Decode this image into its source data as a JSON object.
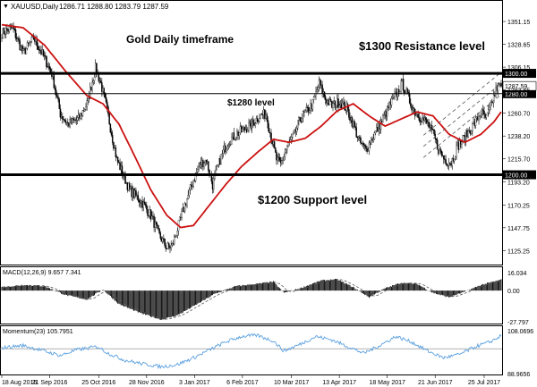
{
  "header": {
    "symbol": "XAUUSD,Daily",
    "ohlc": "1286.71 1288.80 1283.79 1287.59"
  },
  "annotations": {
    "title": "Gold Daily timeframe",
    "resistance": "$1300 Resistance level",
    "mid": "$1280 level",
    "support": "$1200 Support level"
  },
  "macd_label": "MACD(12,26,9) 9.657 7.341",
  "momentum_label": "Momentum(23) 105.7951",
  "colors": {
    "ma_line": "#cc1111",
    "candle": "#000000",
    "level": "#000000",
    "momentum_line": "#5aa0e0",
    "momentum_ref": "#999999",
    "grid_bg": "#ffffff"
  },
  "chart_data": [
    {
      "type": "candlestick",
      "panel": "price",
      "ylim": [
        1115,
        1360
      ],
      "y_ticks": [
        "1351.15",
        "1328.65",
        "1306.15",
        "1283.65",
        "1260.70",
        "1238.20",
        "1215.70",
        "1193.20",
        "1170.25",
        "1147.75",
        "1125.25"
      ],
      "x_ticks": [
        "18 Aug 2016",
        "21 Sep 2016",
        "25 Oct 2016",
        "28 Nov 2016",
        "3 Jan 2017",
        "6 Feb 2017",
        "10 Mar 2017",
        "13 Apr 2017",
        "18 May 2017",
        "21 Jun 2017",
        "25 Jul 2017"
      ],
      "last_price": "1287.59",
      "levels": [
        {
          "value": 1300.0,
          "label": "1300.00",
          "style": "thick"
        },
        {
          "value": 1280.0,
          "label": "1280.00",
          "style": "thin"
        },
        {
          "value": 1200.0,
          "label": "1200.00",
          "style": "thick"
        }
      ],
      "close_keypoints": [
        [
          0,
          1340
        ],
        [
          10,
          1345
        ],
        [
          20,
          1320
        ],
        [
          30,
          1335
        ],
        [
          40,
          1315
        ],
        [
          47,
          1300
        ],
        [
          55,
          1260
        ],
        [
          62,
          1250
        ],
        [
          72,
          1255
        ],
        [
          80,
          1270
        ],
        [
          88,
          1305
        ],
        [
          93,
          1290
        ],
        [
          98,
          1268
        ],
        [
          108,
          1215
        ],
        [
          120,
          1185
        ],
        [
          130,
          1175
        ],
        [
          140,
          1160
        ],
        [
          148,
          1140
        ],
        [
          155,
          1128
        ],
        [
          160,
          1130
        ],
        [
          166,
          1150
        ],
        [
          172,
          1170
        ],
        [
          180,
          1195
        ],
        [
          186,
          1210
        ],
        [
          192,
          1215
        ],
        [
          198,
          1190
        ],
        [
          205,
          1215
        ],
        [
          212,
          1232
        ],
        [
          220,
          1240
        ],
        [
          228,
          1245
        ],
        [
          235,
          1250
        ],
        [
          242,
          1258
        ],
        [
          248,
          1260
        ],
        [
          252,
          1242
        ],
        [
          258,
          1215
        ],
        [
          262,
          1210
        ],
        [
          268,
          1228
        ],
        [
          275,
          1240
        ],
        [
          280,
          1255
        ],
        [
          286,
          1262
        ],
        [
          292,
          1270
        ],
        [
          298,
          1290
        ],
        [
          304,
          1275
        ],
        [
          310,
          1268
        ],
        [
          317,
          1272
        ],
        [
          324,
          1265
        ],
        [
          330,
          1250
        ],
        [
          336,
          1232
        ],
        [
          342,
          1225
        ],
        [
          350,
          1240
        ],
        [
          358,
          1255
        ],
        [
          364,
          1268
        ],
        [
          370,
          1278
        ],
        [
          376,
          1290
        ],
        [
          382,
          1275
        ],
        [
          388,
          1262
        ],
        [
          394,
          1256
        ],
        [
          400,
          1250
        ],
        [
          406,
          1238
        ],
        [
          410,
          1225
        ],
        [
          416,
          1215
        ],
        [
          422,
          1212
        ],
        [
          428,
          1228
        ],
        [
          434,
          1236
        ],
        [
          440,
          1245
        ],
        [
          446,
          1254
        ],
        [
          450,
          1262
        ],
        [
          455,
          1255
        ],
        [
          460,
          1270
        ],
        [
          465,
          1286
        ],
        [
          469,
          1287.6
        ]
      ],
      "ma_keypoints": [
        [
          0,
          1348
        ],
        [
          20,
          1345
        ],
        [
          40,
          1328
        ],
        [
          60,
          1302
        ],
        [
          80,
          1278
        ],
        [
          95,
          1270
        ],
        [
          110,
          1250
        ],
        [
          125,
          1218
        ],
        [
          140,
          1185
        ],
        [
          155,
          1160
        ],
        [
          168,
          1148
        ],
        [
          180,
          1150
        ],
        [
          195,
          1170
        ],
        [
          210,
          1190
        ],
        [
          225,
          1208
        ],
        [
          240,
          1222
        ],
        [
          255,
          1235
        ],
        [
          270,
          1232
        ],
        [
          285,
          1236
        ],
        [
          300,
          1248
        ],
        [
          315,
          1263
        ],
        [
          330,
          1270
        ],
        [
          345,
          1258
        ],
        [
          360,
          1248
        ],
        [
          375,
          1255
        ],
        [
          390,
          1262
        ],
        [
          405,
          1258
        ],
        [
          420,
          1240
        ],
        [
          435,
          1232
        ],
        [
          450,
          1240
        ],
        [
          462,
          1252
        ],
        [
          469,
          1262
        ]
      ],
      "channel": {
        "start_index": 396,
        "start_price": 1228,
        "end_index": 469,
        "end_price": 1290,
        "width": 22
      }
    },
    {
      "type": "histogram",
      "panel": "macd",
      "ylim": [
        -27.797,
        16.034
      ],
      "y_ticks": [
        "16.034",
        "0.00",
        "-27.797"
      ],
      "keypoints": [
        [
          0,
          3
        ],
        [
          20,
          5
        ],
        [
          40,
          4
        ],
        [
          60,
          -4
        ],
        [
          80,
          -8
        ],
        [
          95,
          1
        ],
        [
          110,
          -12
        ],
        [
          130,
          -20
        ],
        [
          150,
          -26
        ],
        [
          165,
          -22
        ],
        [
          180,
          -14
        ],
        [
          200,
          -3
        ],
        [
          220,
          4
        ],
        [
          240,
          6
        ],
        [
          255,
          8
        ],
        [
          265,
          -2
        ],
        [
          280,
          2
        ],
        [
          300,
          9
        ],
        [
          315,
          10
        ],
        [
          330,
          3
        ],
        [
          345,
          -6
        ],
        [
          360,
          2
        ],
        [
          375,
          7
        ],
        [
          390,
          6
        ],
        [
          405,
          -2
        ],
        [
          420,
          -6
        ],
        [
          435,
          -1
        ],
        [
          450,
          5
        ],
        [
          469,
          9.657
        ]
      ],
      "signal_last": 7.341
    },
    {
      "type": "line",
      "panel": "momentum",
      "ylim": [
        88.9656,
        108.0696
      ],
      "y_ticks": [
        "108.0696",
        "88.9656"
      ],
      "reference": 100,
      "keypoints": [
        [
          0,
          100.5
        ],
        [
          20,
          101.5
        ],
        [
          40,
          99
        ],
        [
          55,
          97
        ],
        [
          70,
          99.5
        ],
        [
          90,
          101
        ],
        [
          100,
          98
        ],
        [
          115,
          95
        ],
        [
          130,
          93.5
        ],
        [
          150,
          92
        ],
        [
          165,
          93
        ],
        [
          180,
          96
        ],
        [
          195,
          99.5
        ],
        [
          210,
          103
        ],
        [
          225,
          105.5
        ],
        [
          240,
          106
        ],
        [
          255,
          103.5
        ],
        [
          265,
          99
        ],
        [
          280,
          102
        ],
        [
          295,
          105.5
        ],
        [
          310,
          104
        ],
        [
          325,
          101
        ],
        [
          340,
          98
        ],
        [
          355,
          101.5
        ],
        [
          370,
          105.5
        ],
        [
          385,
          103
        ],
        [
          400,
          99
        ],
        [
          415,
          96
        ],
        [
          430,
          97.5
        ],
        [
          445,
          101
        ],
        [
          458,
          103
        ],
        [
          469,
          105.7951
        ]
      ]
    }
  ]
}
